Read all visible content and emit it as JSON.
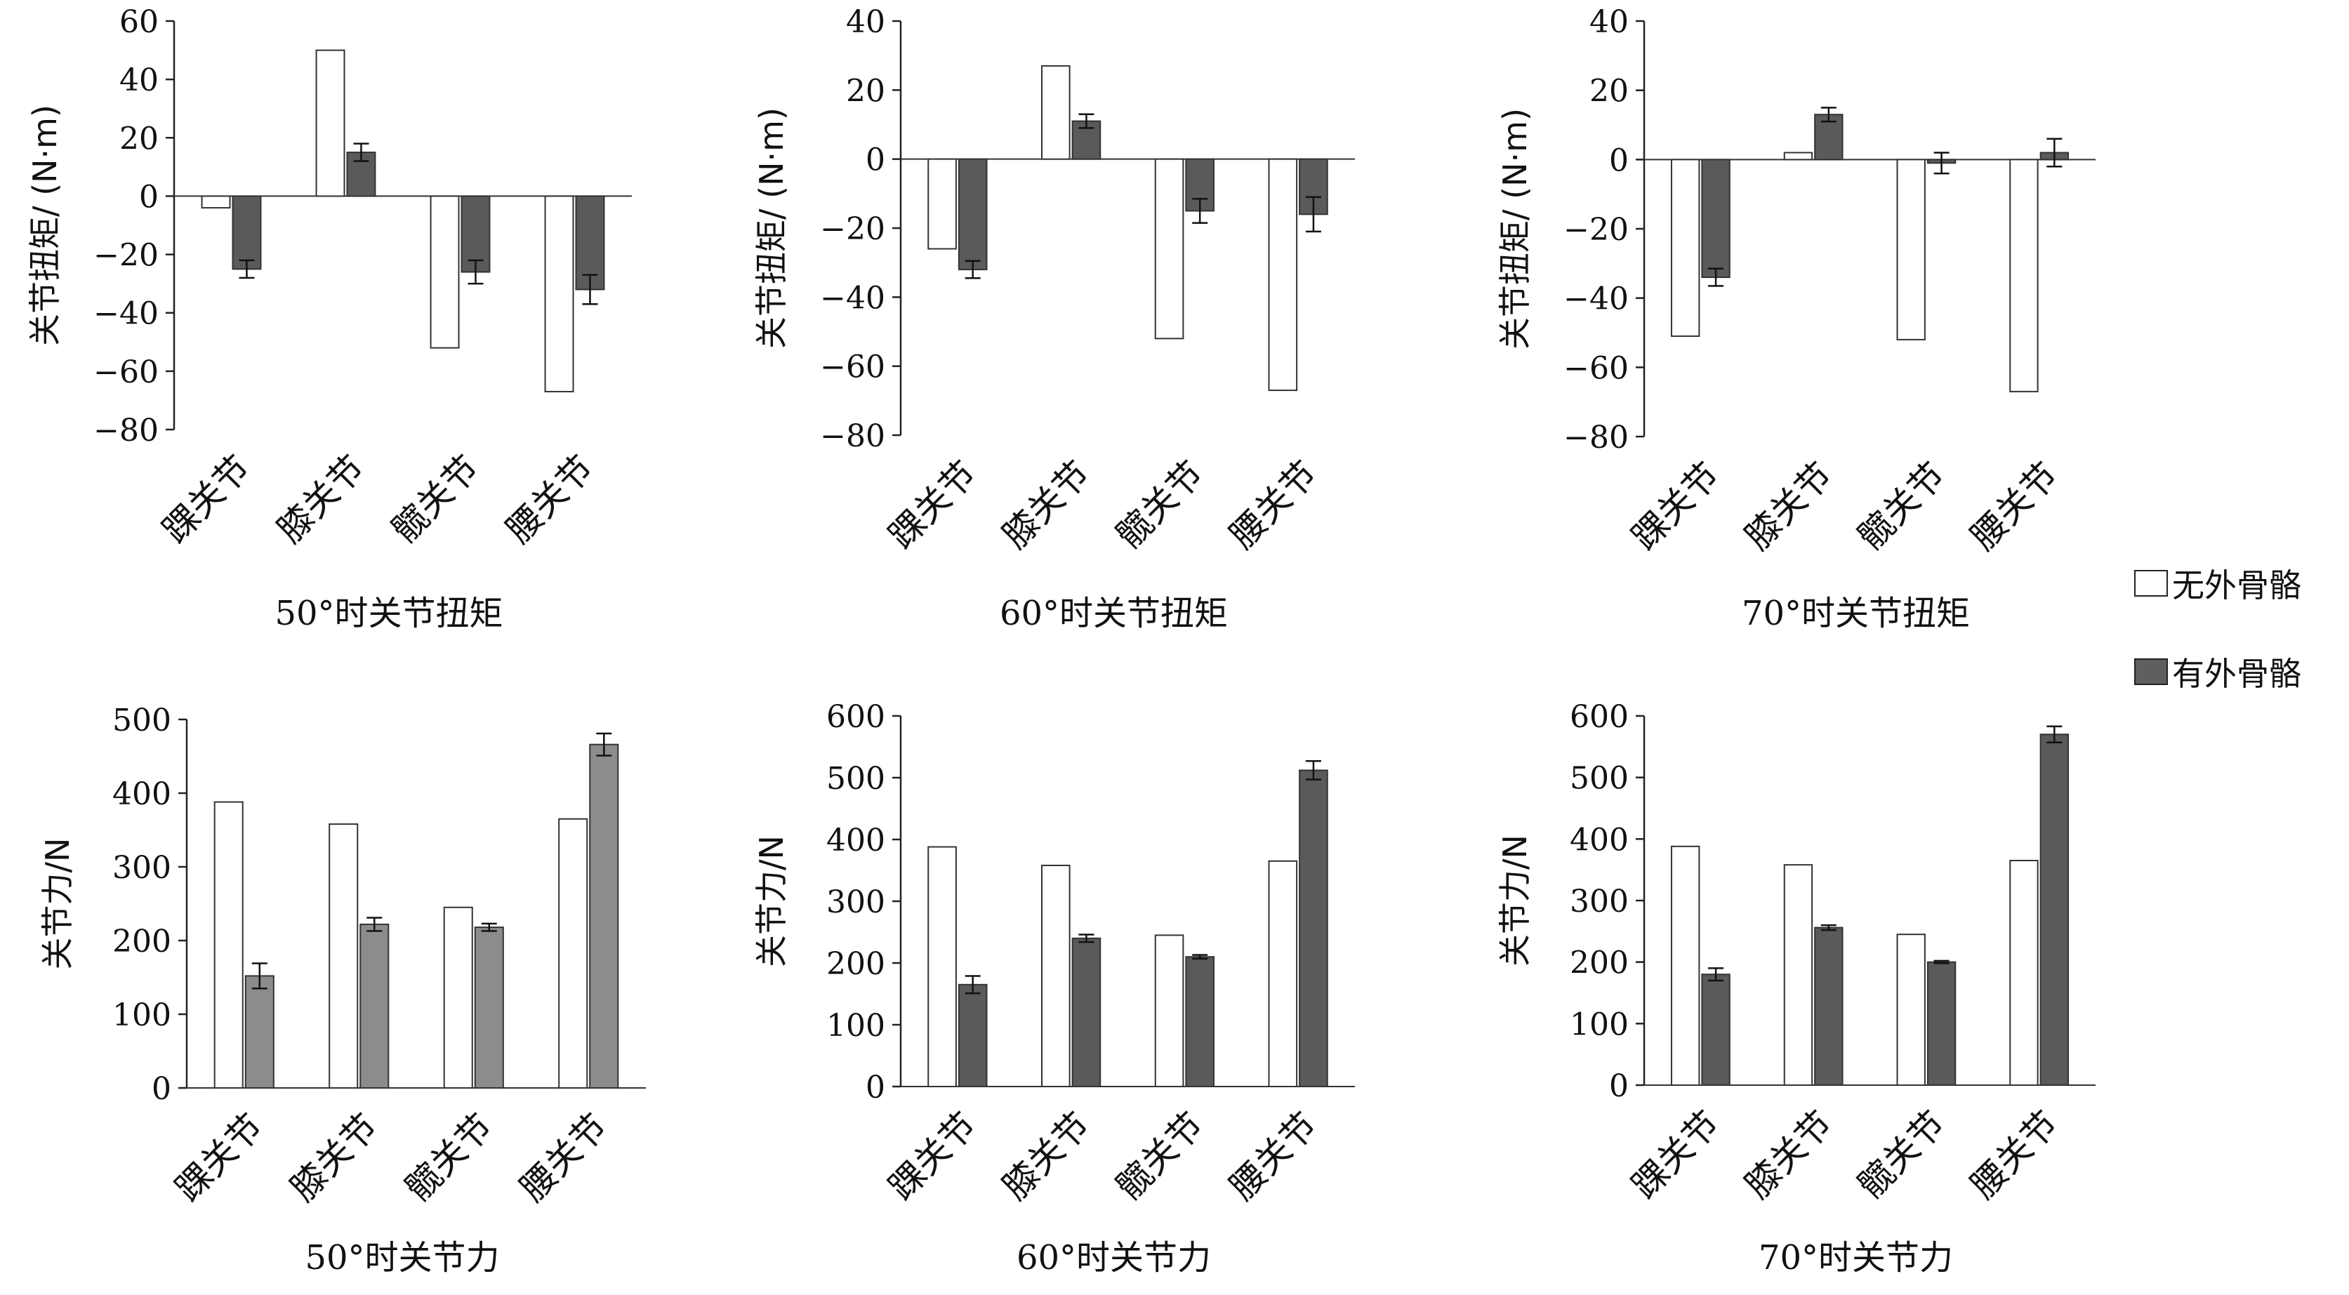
{
  "legend": {
    "without_label": "无外骨骼",
    "with_label": "有外骨骼",
    "without_color": "#ffffff",
    "with_color": "#5f5f5f"
  },
  "chart_data": [
    {
      "type": "bar",
      "title": "50°时关节扭矩",
      "ylabel": "关节扭矩/ (N·m)",
      "categories": [
        "踝关节",
        "膝关节",
        "髋关节",
        "腰关节"
      ],
      "ylim": [
        -80,
        60
      ],
      "yticks": [
        60,
        40,
        20,
        0,
        -20,
        -40,
        -60,
        -80
      ],
      "series": [
        {
          "name": "无外骨骼",
          "values": [
            -4,
            50,
            -52,
            -67
          ],
          "errors": [
            0,
            0,
            0,
            0
          ],
          "color": "#ffffff"
        },
        {
          "name": "有外骨骼",
          "values": [
            -25,
            15,
            -26,
            -32
          ],
          "errors": [
            3,
            3,
            4,
            5
          ],
          "color": "#5a5a5a"
        }
      ]
    },
    {
      "type": "bar",
      "title": "60°时关节扭矩",
      "ylabel": "关节扭矩/ (N·m)",
      "categories": [
        "踝关节",
        "膝关节",
        "髋关节",
        "腰关节"
      ],
      "ylim": [
        -80,
        40
      ],
      "yticks": [
        40,
        20,
        0,
        -20,
        -40,
        -60,
        -80
      ],
      "series": [
        {
          "name": "无外骨骼",
          "values": [
            -26,
            27,
            -52,
            -67
          ],
          "errors": [
            0,
            0,
            0,
            0
          ],
          "color": "#ffffff"
        },
        {
          "name": "有外骨骼",
          "values": [
            -32,
            11,
            -15,
            -16
          ],
          "errors": [
            2.5,
            2,
            3.5,
            5
          ],
          "color": "#5a5a5a"
        }
      ]
    },
    {
      "type": "bar",
      "title": "70°时关节扭矩",
      "ylabel": "关节扭矩/ (N·m)",
      "categories": [
        "踝关节",
        "膝关节",
        "髋关节",
        "腰关节"
      ],
      "ylim": [
        -80,
        40
      ],
      "yticks": [
        40,
        20,
        0,
        -20,
        -40,
        -60,
        -80
      ],
      "series": [
        {
          "name": "无外骨骼",
          "values": [
            -51,
            2,
            -52,
            -67
          ],
          "errors": [
            0,
            0,
            0,
            0
          ],
          "color": "#ffffff"
        },
        {
          "name": "有外骨骼",
          "values": [
            -34,
            13,
            -1,
            2
          ],
          "errors": [
            2.5,
            2,
            3,
            4
          ],
          "color": "#5a5a5a"
        }
      ]
    },
    {
      "type": "bar",
      "title": "50°时关节力",
      "ylabel": "关节力/N",
      "categories": [
        "踝关节",
        "膝关节",
        "髋关节",
        "腰关节"
      ],
      "ylim": [
        0,
        500
      ],
      "yticks": [
        500,
        400,
        300,
        200,
        100,
        0
      ],
      "series": [
        {
          "name": "无外骨骼",
          "values": [
            388,
            358,
            245,
            365
          ],
          "errors": [
            0,
            0,
            0,
            0
          ],
          "color": "#ffffff"
        },
        {
          "name": "有外骨骼",
          "values": [
            152,
            222,
            218,
            466
          ],
          "errors": [
            17,
            9,
            5,
            15
          ],
          "color": "#8c8c8c"
        }
      ]
    },
    {
      "type": "bar",
      "title": "60°时关节力",
      "ylabel": "关节力/N",
      "categories": [
        "踝关节",
        "膝关节",
        "髋关节",
        "腰关节"
      ],
      "ylim": [
        0,
        600
      ],
      "yticks": [
        600,
        500,
        400,
        300,
        200,
        100,
        0
      ],
      "series": [
        {
          "name": "无外骨骼",
          "values": [
            388,
            358,
            245,
            365
          ],
          "errors": [
            0,
            0,
            0,
            0
          ],
          "color": "#ffffff"
        },
        {
          "name": "有外骨骼",
          "values": [
            165,
            240,
            210,
            512
          ],
          "errors": [
            14,
            6,
            3,
            15
          ],
          "color": "#5a5a5a"
        }
      ]
    },
    {
      "type": "bar",
      "title": "70°时关节力",
      "ylabel": "关节力/N",
      "categories": [
        "踝关节",
        "膝关节",
        "髋关节",
        "腰关节"
      ],
      "ylim": [
        0,
        600
      ],
      "yticks": [
        600,
        500,
        400,
        300,
        200,
        100,
        0
      ],
      "series": [
        {
          "name": "无外骨骼",
          "values": [
            388,
            358,
            245,
            365
          ],
          "errors": [
            0,
            0,
            0,
            0
          ],
          "color": "#ffffff"
        },
        {
          "name": "有外骨骼",
          "values": [
            180,
            256,
            200,
            570
          ],
          "errors": [
            10,
            4,
            2,
            13
          ],
          "color": "#5a5a5a"
        }
      ]
    }
  ]
}
